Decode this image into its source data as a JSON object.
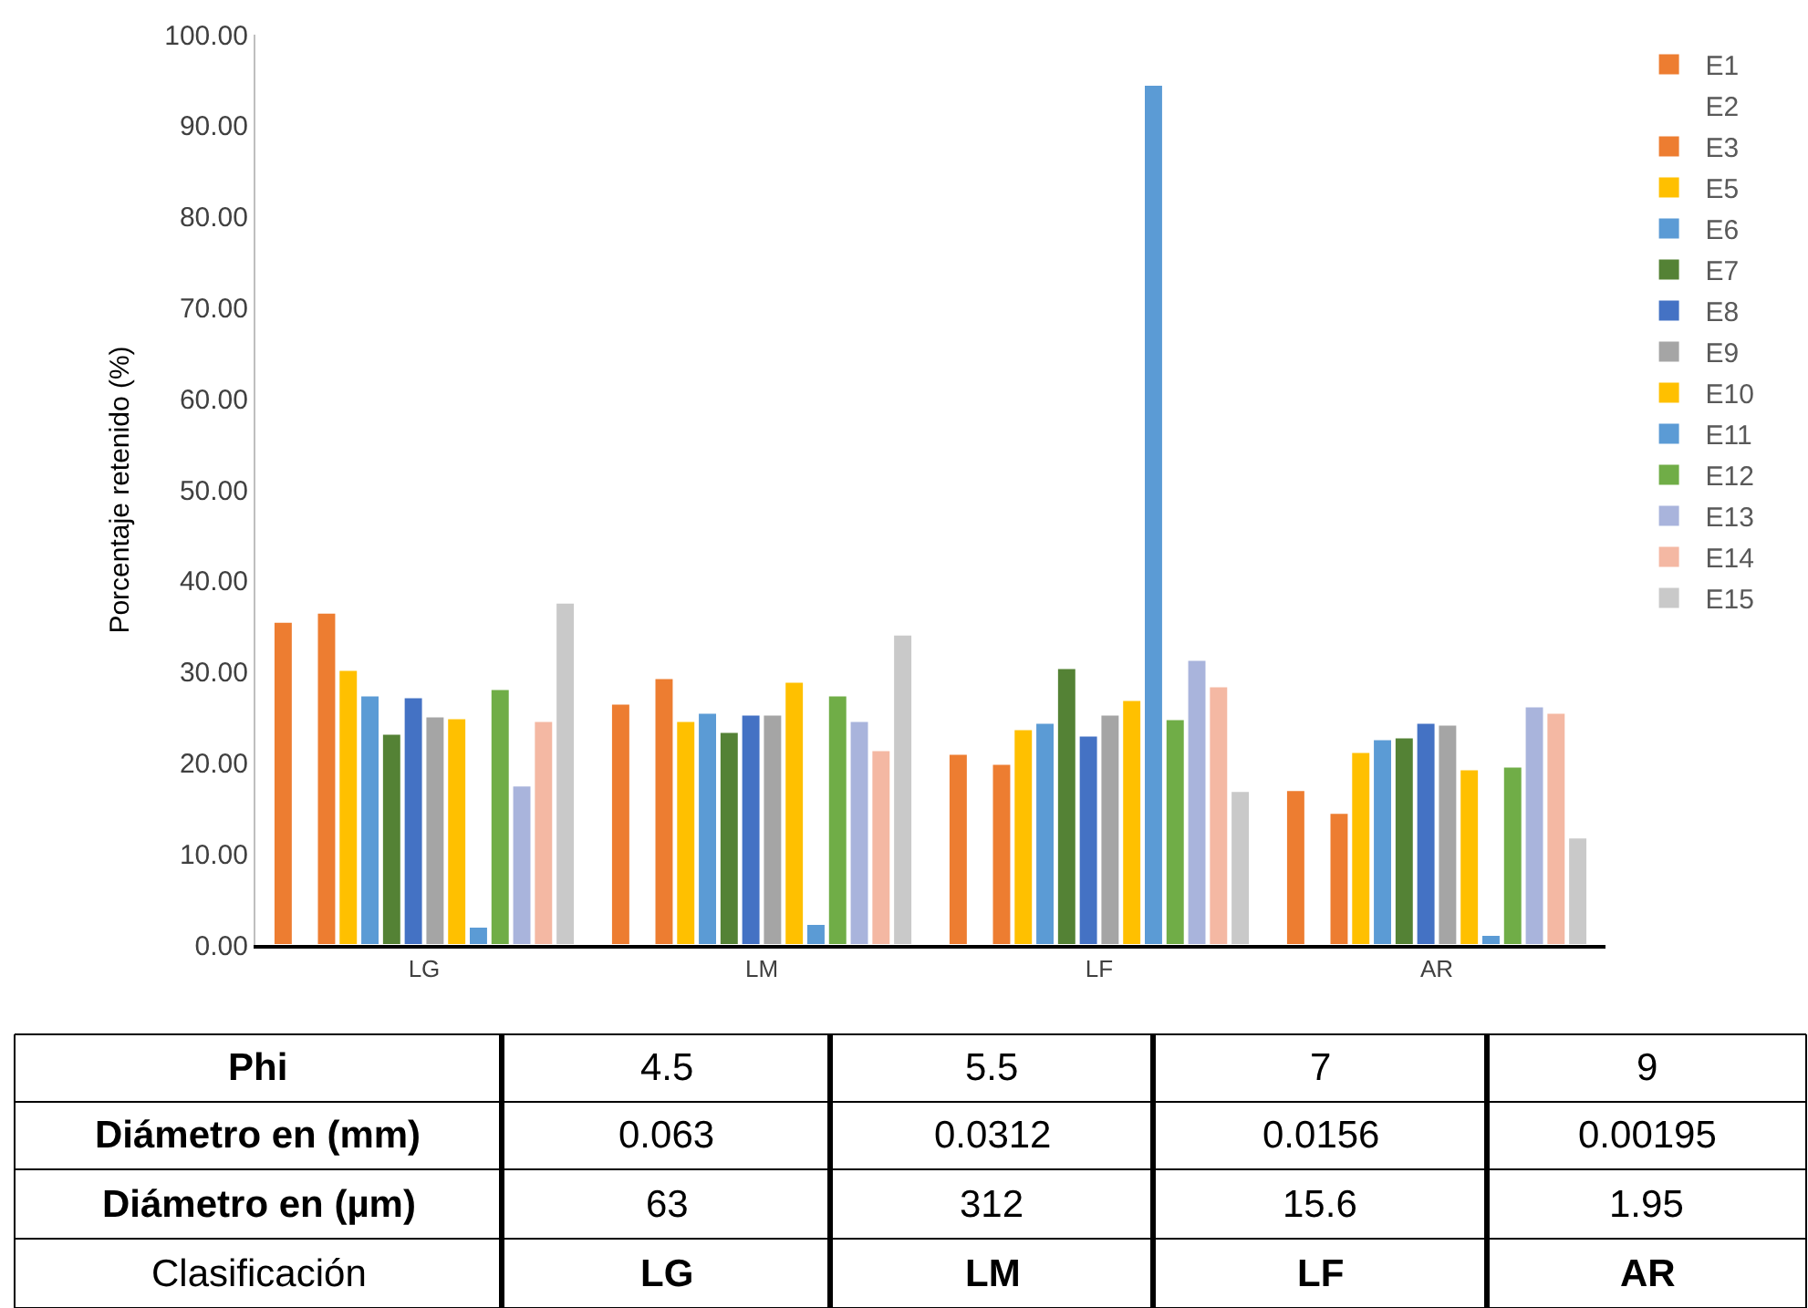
{
  "chart_data": {
    "type": "bar",
    "ylabel": "Porcentaje retenido (%)",
    "categories": [
      "LG",
      "LM",
      "LF",
      "AR"
    ],
    "series": [
      {
        "name": "E1",
        "color": "#ed7d31",
        "values": [
          35.5,
          26.5,
          21.0,
          17.0
        ]
      },
      {
        "name": "E2",
        "values": [
          null,
          null,
          null,
          null
        ]
      },
      {
        "name": "E3",
        "color": "#ed7d31",
        "values": [
          36.5,
          29.3,
          19.9,
          14.5
        ]
      },
      {
        "name": "E5",
        "color": "#ffc000",
        "values": [
          30.2,
          24.6,
          23.7,
          21.2
        ]
      },
      {
        "name": "E6",
        "color": "#5b9bd5",
        "values": [
          27.4,
          25.5,
          24.4,
          22.6
        ]
      },
      {
        "name": "E7",
        "color": "#548235",
        "values": [
          23.2,
          23.4,
          30.4,
          22.8
        ]
      },
      {
        "name": "E8",
        "color": "#4472c4",
        "values": [
          27.2,
          25.3,
          23.0,
          24.4
        ]
      },
      {
        "name": "E9",
        "color": "#a5a5a5",
        "values": [
          25.1,
          25.3,
          25.3,
          24.2
        ]
      },
      {
        "name": "E10",
        "color": "#ffc000",
        "values": [
          24.9,
          28.9,
          26.9,
          19.3
        ]
      },
      {
        "name": "E11",
        "color": "#5b9bd5",
        "values": [
          2.0,
          2.3,
          94.5,
          1.1
        ]
      },
      {
        "name": "E12",
        "color": "#70ad47",
        "values": [
          28.1,
          27.4,
          24.8,
          19.6
        ]
      },
      {
        "name": "E13",
        "color": "#a9b4dc",
        "values": [
          17.5,
          24.6,
          31.3,
          26.2
        ]
      },
      {
        "name": "E14",
        "color": "#f4b8a3",
        "values": [
          24.6,
          21.4,
          28.4,
          25.5
        ]
      },
      {
        "name": "E15",
        "color": "#c9c9c9",
        "values": [
          37.6,
          34.1,
          16.9,
          11.8
        ]
      }
    ],
    "ylim": [
      0,
      100
    ],
    "yticks": [
      {
        "value": 0,
        "label": "0.00"
      },
      {
        "value": 10,
        "label": "10.00"
      },
      {
        "value": 20,
        "label": "20.00"
      },
      {
        "value": 30,
        "label": "30.00"
      },
      {
        "value": 40,
        "label": "40.00"
      },
      {
        "value": 50,
        "label": "50.00"
      },
      {
        "value": 60,
        "label": "60.00"
      },
      {
        "value": 70,
        "label": "70.00"
      },
      {
        "value": 80,
        "label": "80.00"
      },
      {
        "value": 90,
        "label": "90.00"
      },
      {
        "value": 100,
        "label": "100.00"
      }
    ],
    "grid": false,
    "legend": "right",
    "annotations": [
      "Phi",
      "4.5",
      "5.5",
      "7",
      "9",
      "Diámetro en (mm)",
      "0.063",
      "0.0312",
      "0.0156",
      "0.00195",
      "Diámetro en (µm)",
      "63",
      "312",
      "15.6",
      "1.95",
      "Clasificación",
      "LG",
      "LM",
      "LF",
      "AR"
    ]
  }
}
